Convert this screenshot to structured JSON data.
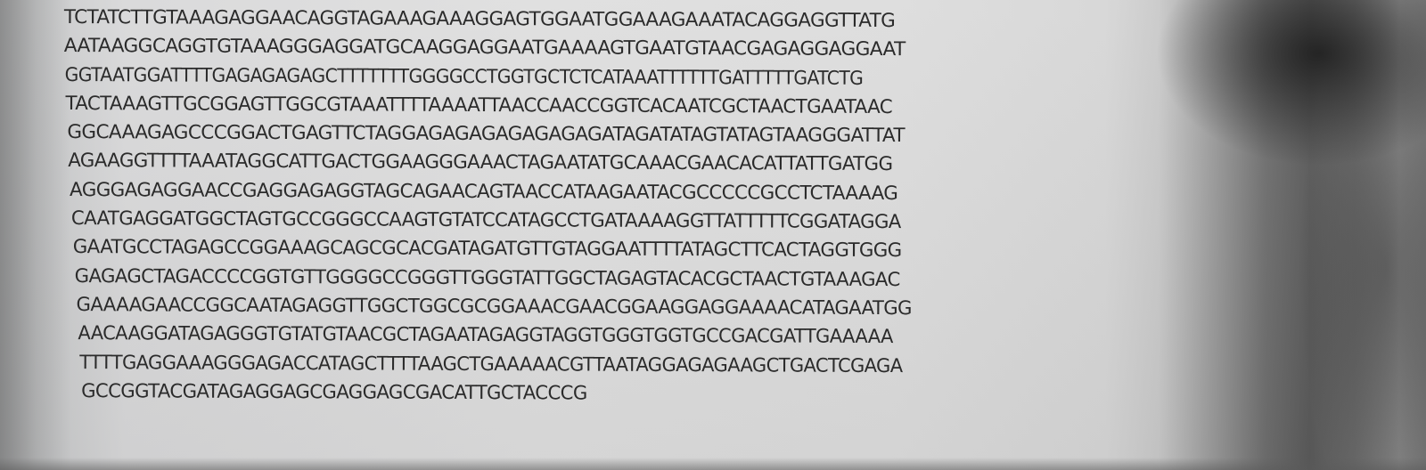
{
  "dna_sequence": {
    "lines": [
      "TCTATCTTGTAAAGAGGAACAGGTAGAAAGAAAGGAGTGGAATGGAAAGAAATACAGGAGGTTATG",
      "AATAAGGCAGGTGTAAAGGGAGGATGCAAGGAGGAATGAAAAGTGAATGTAACGAGAGGAGGAAT",
      "GGTAATGGATTTTGAGAGAGAGCTTTTTTTGGGGCCTGGTGCTCTCATAAATTTTTTGATTTTTGATCTG",
      "TACTAAAGTTGCGGAGTTGGCGTAAATTTTAAAATTAACCAACCGGTCACAATCGCTAACTGAATAAC",
      "GGCAAAGAGCCCGGACTGAGTTCTAGGAGAGAGAGAGAGAGATAGATATAGTATAGTAAGGGATTAT",
      "AGAAGGTTTTAAATAGGCATTGACTGGAAGGGAAACTAGAATATGCAAACGAACACATTATTGATGG",
      "AGGGAGAGGAACCGAGGAGAGGTAGCAGAACAGTAACCATAAGAATACGCCCCCGCCTCTAAAAG",
      "CAATGAGGATGGCTAGTGCCGGGCCAAGTGTATCCATAGCCTGATAAAAGGTTATTTTTCGGATAGGA",
      "GAATGCCTAGAGCCGGAAAGCAGCGCACGATAGATGTTGTAGGAATTTTATAGCTTCACTAGGTGGG",
      "GAGAGCTAGACCCCGGTGTTGGGGCCGGGTTGGGTATTGGCTAGAGTACACGCTAACTGTAAAGAC",
      "GAAAAGAACCGGCAATAGAGGTTGGCTGGCGCGGAAACGAACGGAAGGAGGAAAACATAGAATGG",
      "AACAAGGATAGAGGGTGTATGTAACGCTAGAATAGAGGTAGGTGGGTGGTGCCGACGATTGAAAAA",
      "TTTTGAGGAAAGGGAGACCATAGCTTTTAAGCTGAAAAACGTTAATAGGAGAGAAGCTGACTCGAGA",
      "GCCGGTACGATAGAGGAGCGAGGAGCGACATTGCTACCCG"
    ]
  },
  "colors": {
    "ink": "#2b2b2b",
    "paper": "#dedede",
    "shadow": "#5a5a5a"
  }
}
